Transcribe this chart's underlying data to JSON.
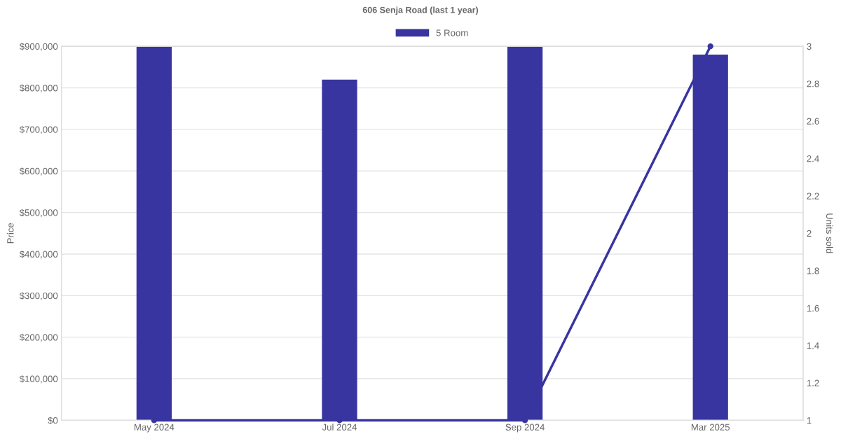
{
  "chart_data": {
    "type": "bar",
    "title": "606 Senja Road (last 1 year)",
    "ylabel": "Price",
    "y2label": "Units sold",
    "categories": [
      "May 2024",
      "Jul 2024",
      "Sep 2024",
      "Mar 2025"
    ],
    "series": [
      {
        "name": "5 Room",
        "color": "#3835a0",
        "values": [
          900000,
          820000,
          900000,
          880000
        ]
      },
      {
        "type": "line",
        "axis": "y2",
        "color": "#3835a0",
        "values": [
          1,
          1,
          1,
          3
        ]
      }
    ],
    "ylim": [
      0,
      900000
    ],
    "yticks": [
      {
        "value": 0,
        "label": "$0"
      },
      {
        "value": 100000,
        "label": "$100,000"
      },
      {
        "value": 200000,
        "label": "$200,000"
      },
      {
        "value": 300000,
        "label": "$300,000"
      },
      {
        "value": 400000,
        "label": "$400,000"
      },
      {
        "value": 500000,
        "label": "$500,000"
      },
      {
        "value": 600000,
        "label": "$600,000"
      },
      {
        "value": 700000,
        "label": "$700,000"
      },
      {
        "value": 800000,
        "label": "$800,000"
      },
      {
        "value": 900000,
        "label": "$900,000"
      }
    ],
    "y2lim": [
      1,
      3
    ],
    "y2ticks": [
      1,
      1.2,
      1.4,
      1.6,
      1.8,
      2,
      2.2,
      2.4,
      2.6,
      2.8,
      3
    ],
    "grid": "y",
    "legend": "top",
    "marker": "circle"
  }
}
